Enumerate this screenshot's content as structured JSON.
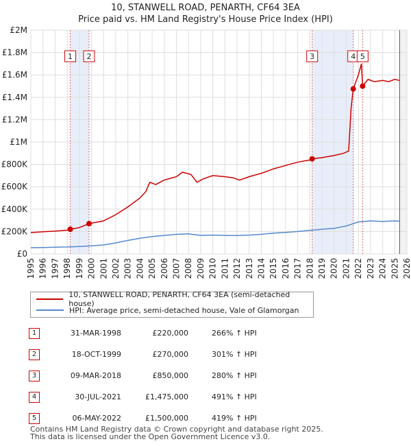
{
  "title_line1": "10, STANWELL ROAD, PENARTH, CF64 3EA",
  "title_line2": "Price paid vs. HM Land Registry's House Price Index (HPI)",
  "chart_data": {
    "type": "line",
    "xlim": [
      1995,
      2026
    ],
    "ylim": [
      0,
      2000000
    ],
    "x_ticks": [
      "1995",
      "1996",
      "1997",
      "1998",
      "1999",
      "2000",
      "2001",
      "2002",
      "2003",
      "2004",
      "2005",
      "2006",
      "2007",
      "2008",
      "2009",
      "2010",
      "2011",
      "2012",
      "2013",
      "2014",
      "2015",
      "2016",
      "2017",
      "2018",
      "2019",
      "2020",
      "2021",
      "2022",
      "2023",
      "2024",
      "2025",
      "2026"
    ],
    "y_ticks": [
      {
        "value": 0,
        "label": "£0"
      },
      {
        "value": 200000,
        "label": "£200K"
      },
      {
        "value": 400000,
        "label": "£400K"
      },
      {
        "value": 600000,
        "label": "£600K"
      },
      {
        "value": 800000,
        "label": "£800K"
      },
      {
        "value": 1000000,
        "label": "£1M"
      },
      {
        "value": 1200000,
        "label": "£1.2M"
      },
      {
        "value": 1400000,
        "label": "£1.4M"
      },
      {
        "value": 1600000,
        "label": "£1.6M"
      },
      {
        "value": 1800000,
        "label": "£1.8M"
      },
      {
        "value": 2000000,
        "label": "£2M"
      }
    ],
    "series": [
      {
        "name": "10, STANWELL ROAD, PENARTH, CF64 3EA (semi-detached house)",
        "color": "#cc0000",
        "points": [
          [
            1995.0,
            190000
          ],
          [
            1996.0,
            198000
          ],
          [
            1997.0,
            203000
          ],
          [
            1998.0,
            212000
          ],
          [
            1998.25,
            220000
          ],
          [
            1999.0,
            235000
          ],
          [
            1999.8,
            270000
          ],
          [
            2000.5,
            285000
          ],
          [
            2001.0,
            295000
          ],
          [
            2002.0,
            350000
          ],
          [
            2003.0,
            420000
          ],
          [
            2004.0,
            500000
          ],
          [
            2004.5,
            560000
          ],
          [
            2004.8,
            640000
          ],
          [
            2005.3,
            620000
          ],
          [
            2006.0,
            660000
          ],
          [
            2007.0,
            690000
          ],
          [
            2007.5,
            730000
          ],
          [
            2008.2,
            710000
          ],
          [
            2008.7,
            640000
          ],
          [
            2009.2,
            670000
          ],
          [
            2010.0,
            700000
          ],
          [
            2011.0,
            690000
          ],
          [
            2011.7,
            680000
          ],
          [
            2012.2,
            660000
          ],
          [
            2013.0,
            690000
          ],
          [
            2014.0,
            720000
          ],
          [
            2015.0,
            760000
          ],
          [
            2016.0,
            790000
          ],
          [
            2017.0,
            820000
          ],
          [
            2018.0,
            840000
          ],
          [
            2018.19,
            850000
          ],
          [
            2019.0,
            860000
          ],
          [
            2020.0,
            880000
          ],
          [
            2020.8,
            900000
          ],
          [
            2021.2,
            920000
          ],
          [
            2021.4,
            1300000
          ],
          [
            2021.58,
            1475000
          ],
          [
            2022.0,
            1600000
          ],
          [
            2022.25,
            1700000
          ],
          [
            2022.35,
            1500000
          ],
          [
            2022.8,
            1560000
          ],
          [
            2023.3,
            1540000
          ],
          [
            2024.0,
            1550000
          ],
          [
            2024.5,
            1540000
          ],
          [
            2025.0,
            1560000
          ],
          [
            2025.4,
            1550000
          ]
        ]
      },
      {
        "name": "HPI: Average price, semi-detached house, Vale of Glamorgan",
        "color": "#5588cc",
        "points": [
          [
            1995.0,
            55000
          ],
          [
            1996.0,
            57000
          ],
          [
            1997.0,
            60000
          ],
          [
            1998.0,
            62000
          ],
          [
            1999.0,
            66000
          ],
          [
            2000.0,
            72000
          ],
          [
            2001.0,
            80000
          ],
          [
            2002.0,
            98000
          ],
          [
            2003.0,
            120000
          ],
          [
            2004.0,
            140000
          ],
          [
            2005.0,
            155000
          ],
          [
            2006.0,
            165000
          ],
          [
            2007.0,
            175000
          ],
          [
            2008.0,
            180000
          ],
          [
            2009.0,
            165000
          ],
          [
            2010.0,
            168000
          ],
          [
            2011.0,
            165000
          ],
          [
            2012.0,
            164000
          ],
          [
            2013.0,
            168000
          ],
          [
            2014.0,
            175000
          ],
          [
            2015.0,
            185000
          ],
          [
            2016.0,
            192000
          ],
          [
            2017.0,
            200000
          ],
          [
            2018.0,
            210000
          ],
          [
            2019.0,
            220000
          ],
          [
            2020.0,
            228000
          ],
          [
            2021.0,
            250000
          ],
          [
            2022.0,
            285000
          ],
          [
            2023.0,
            295000
          ],
          [
            2024.0,
            290000
          ],
          [
            2025.0,
            295000
          ],
          [
            2025.4,
            292000
          ]
        ]
      }
    ],
    "sales": [
      {
        "n": "1",
        "x": 1998.25,
        "price": 220000
      },
      {
        "n": "2",
        "x": 1999.8,
        "price": 270000
      },
      {
        "n": "3",
        "x": 2018.19,
        "price": 850000
      },
      {
        "n": "4",
        "x": 2021.58,
        "price": 1475000
      },
      {
        "n": "5",
        "x": 2022.35,
        "price": 1500000
      }
    ],
    "shaded_ranges": [
      [
        1998.25,
        1999.8
      ],
      [
        2018.19,
        2021.58
      ]
    ],
    "colors": {
      "grid": "#dddddd",
      "shade": "#e8eef9",
      "sale_line": "#e06666",
      "box_border": "#cc0000"
    }
  },
  "legend": {
    "property_label": "10, STANWELL ROAD, PENARTH, CF64 3EA (semi-detached house)",
    "hpi_label": "HPI: Average price, semi-detached house, Vale of Glamorgan",
    "property_color": "#cc0000",
    "hpi_color": "#5588cc"
  },
  "transactions": [
    {
      "n": "1",
      "date": "31-MAR-1998",
      "price": "£220,000",
      "hpi": "266% ↑ HPI"
    },
    {
      "n": "2",
      "date": "18-OCT-1999",
      "price": "£270,000",
      "hpi": "301% ↑ HPI"
    },
    {
      "n": "3",
      "date": "09-MAR-2018",
      "price": "£850,000",
      "hpi": "280% ↑ HPI"
    },
    {
      "n": "4",
      "date": "30-JUL-2021",
      "price": "£1,475,000",
      "hpi": "491% ↑ HPI"
    },
    {
      "n": "5",
      "date": "06-MAY-2022",
      "price": "£1,500,000",
      "hpi": "419% ↑ HPI"
    }
  ],
  "footer_line1": "Contains HM Land Registry data © Crown copyright and database right 2025.",
  "footer_line2": "This data is licensed under the Open Government Licence v3.0."
}
